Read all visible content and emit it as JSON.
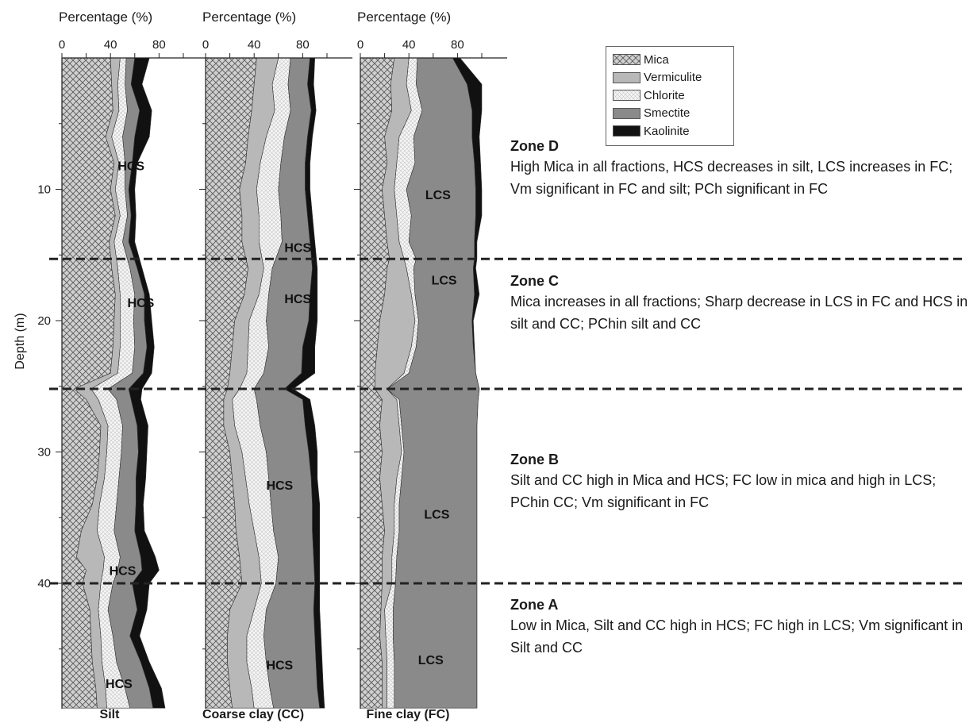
{
  "chart_data": {
    "type": "area",
    "y_axis": {
      "label": "Depth (m)",
      "ticks": [
        10,
        20,
        30,
        40
      ],
      "range": [
        0,
        49
      ],
      "inverted": true
    },
    "x_axis": {
      "label": "Percentage (%)",
      "ticks": [
        0,
        40,
        80
      ],
      "range": [
        0,
        100
      ],
      "position": "top"
    },
    "legend": {
      "position": "top-right",
      "entries": [
        "Mica",
        "Vermiculite",
        "Chlorite",
        "Smectite",
        "Kaolinite"
      ]
    },
    "colors": {
      "Mica": "#c9c9c9",
      "Vermiculite": "#b8b8b8",
      "Chlorite": "#f2f2f2",
      "Smectite": "#8a8a8a",
      "Kaolinite": "#111111"
    },
    "zone_boundaries_m": [
      15.3,
      25.2,
      40.0
    ],
    "panels": [
      {
        "name": "Silt",
        "depth": [
          0,
          2,
          4,
          6,
          8,
          10,
          12,
          14,
          16,
          18,
          20,
          22,
          24,
          25.2,
          26,
          28,
          30,
          32,
          34,
          36,
          38,
          39,
          40,
          42,
          44,
          46,
          48,
          49.5
        ],
        "cumulative": {
          "Mica": [
            40,
            41,
            42,
            36,
            43,
            40,
            44,
            39,
            41,
            44,
            43,
            42,
            40,
            10,
            20,
            32,
            31,
            29,
            25,
            16,
            12,
            20,
            17,
            23,
            24,
            25,
            28,
            29
          ],
          "Vermiculite": [
            48,
            46,
            47,
            41,
            47,
            44,
            48,
            43,
            46,
            48,
            48,
            48,
            46,
            24,
            30,
            38,
            37,
            35,
            31,
            29,
            35,
            34,
            32,
            30,
            32,
            33,
            36,
            37
          ],
          "Chlorite": [
            53,
            52,
            54,
            50,
            52,
            52,
            54,
            50,
            56,
            60,
            59,
            60,
            58,
            38,
            45,
            50,
            49,
            47,
            45,
            43,
            48,
            46,
            42,
            38,
            42,
            45,
            52,
            56
          ],
          "Smectite": [
            60,
            57,
            64,
            60,
            58,
            55,
            57,
            55,
            62,
            68,
            68,
            70,
            67,
            55,
            57,
            62,
            63,
            61,
            61,
            60,
            65,
            66,
            58,
            62,
            56,
            65,
            72,
            75
          ],
          "Kaolinite": [
            72,
            66,
            74,
            72,
            62,
            60,
            61,
            60,
            66,
            72,
            74,
            76,
            74,
            66,
            65,
            71,
            70,
            69,
            67,
            68,
            77,
            80,
            72,
            70,
            64,
            72,
            82,
            85
          ]
        },
        "labels": [
          {
            "text": "HCS",
            "x": 57,
            "depth": 8.2
          },
          {
            "text": "HCS",
            "x": 65,
            "depth": 18.6
          },
          {
            "text": "HCS",
            "x": 50,
            "depth": 39.0
          },
          {
            "text": "HCS",
            "x": 47,
            "depth": 47.6
          }
        ]
      },
      {
        "name": "Coarse clay (CC)",
        "depth": [
          0,
          2,
          4,
          6,
          8,
          10,
          12,
          14,
          16,
          18,
          20,
          22,
          24,
          25.2,
          26,
          28,
          30,
          32,
          34,
          36,
          38,
          40,
          42,
          44,
          46,
          48,
          49.5
        ],
        "cumulative": {
          "Mica": [
            42,
            40,
            38,
            35,
            33,
            28,
            30,
            30,
            35,
            32,
            24,
            22,
            20,
            18,
            15,
            15,
            20,
            22,
            24,
            25,
            28,
            30,
            20,
            18,
            18,
            20,
            22
          ],
          "Vermiculite": [
            60,
            55,
            57,
            50,
            45,
            42,
            44,
            44,
            48,
            44,
            36,
            35,
            34,
            28,
            22,
            24,
            30,
            33,
            36,
            40,
            44,
            46,
            40,
            34,
            34,
            38,
            40
          ],
          "Chlorite": [
            70,
            68,
            70,
            65,
            62,
            60,
            62,
            63,
            55,
            52,
            50,
            52,
            48,
            40,
            42,
            45,
            50,
            52,
            54,
            56,
            60,
            58,
            50,
            48,
            50,
            53,
            56
          ],
          "Smectite": [
            86,
            84,
            87,
            84,
            82,
            82,
            84,
            86,
            88,
            86,
            85,
            80,
            79,
            65,
            80,
            82,
            85,
            87,
            88,
            88,
            89,
            90,
            89,
            90,
            91,
            92,
            94
          ],
          "Kaolinite": [
            90,
            89,
            91,
            88,
            86,
            86,
            88,
            90,
            92,
            92,
            92,
            90,
            90,
            72,
            86,
            90,
            92,
            92,
            94,
            94,
            94,
            94,
            94,
            95,
            96,
            97,
            98
          ]
        },
        "labels": [
          {
            "text": "HCS",
            "x": 76,
            "depth": 14.4
          },
          {
            "text": "HCS",
            "x": 76,
            "depth": 18.3
          },
          {
            "text": "HCS",
            "x": 61,
            "depth": 32.5
          },
          {
            "text": "HCS",
            "x": 61,
            "depth": 46.2
          }
        ]
      },
      {
        "name": "Fine clay (FC)",
        "depth": [
          0,
          2,
          4,
          6,
          8,
          10,
          12,
          14,
          15.3,
          16,
          18,
          20,
          22,
          24,
          25.2,
          26,
          28,
          30,
          32,
          34,
          36,
          38,
          40,
          42,
          44,
          46,
          48,
          49.5
        ],
        "cumulative": {
          "Mica": [
            28,
            25,
            26,
            20,
            22,
            18,
            20,
            22,
            24,
            22,
            20,
            16,
            14,
            12,
            12,
            18,
            16,
            18,
            16,
            18,
            20,
            18,
            18,
            17,
            16,
            18,
            18,
            18
          ],
          "Vermiculite": [
            40,
            38,
            42,
            32,
            30,
            28,
            30,
            32,
            36,
            38,
            42,
            45,
            42,
            36,
            22,
            30,
            32,
            34,
            30,
            28,
            28,
            26,
            26,
            20,
            21,
            22,
            22,
            22
          ],
          "Chlorite": [
            47,
            46,
            51,
            44,
            45,
            38,
            42,
            40,
            46,
            44,
            45,
            48,
            46,
            40,
            22,
            32,
            34,
            36,
            34,
            32,
            32,
            30,
            29,
            27,
            27,
            28,
            28,
            28
          ],
          "Smectite": [
            76,
            88,
            92,
            92,
            94,
            95,
            95,
            94,
            94,
            93,
            94,
            92,
            93,
            95,
            98,
            97,
            96,
            96,
            96,
            96,
            96,
            96,
            96,
            96,
            96,
            96,
            96,
            96
          ],
          "Kaolinite": [
            82,
            100,
            100,
            98,
            99,
            100,
            100,
            96,
            96,
            95,
            98,
            93,
            94,
            95,
            98,
            97,
            96,
            96,
            96,
            96,
            96,
            96,
            96,
            96,
            96,
            96,
            96,
            96
          ]
        },
        "labels": [
          {
            "text": "LCS",
            "x": 64,
            "depth": 10.4
          },
          {
            "text": "LCS",
            "x": 69,
            "depth": 16.9
          },
          {
            "text": "LCS",
            "x": 63,
            "depth": 34.7
          },
          {
            "text": "LCS",
            "x": 58,
            "depth": 45.8
          }
        ]
      }
    ]
  },
  "zones": [
    {
      "title": "Zone D",
      "text": "High Mica in all fractions, HCS decreases in silt, LCS increases in FC; Vm significant in FC and silt; PCh significant in FC"
    },
    {
      "title": "Zone C",
      "text": "Mica increases in all fractions; Sharp decrease in LCS in FC and HCS in silt and CC; PChin silt and CC"
    },
    {
      "title": "Zone B",
      "text": "Silt and CC high in Mica and HCS; FC low in mica and high in LCS; PChin CC; Vm significant in FC"
    },
    {
      "title": "Zone A",
      "text": "Low in Mica, Silt and CC high in HCS; FC high in LCS; Vm significant in Silt and CC"
    }
  ]
}
